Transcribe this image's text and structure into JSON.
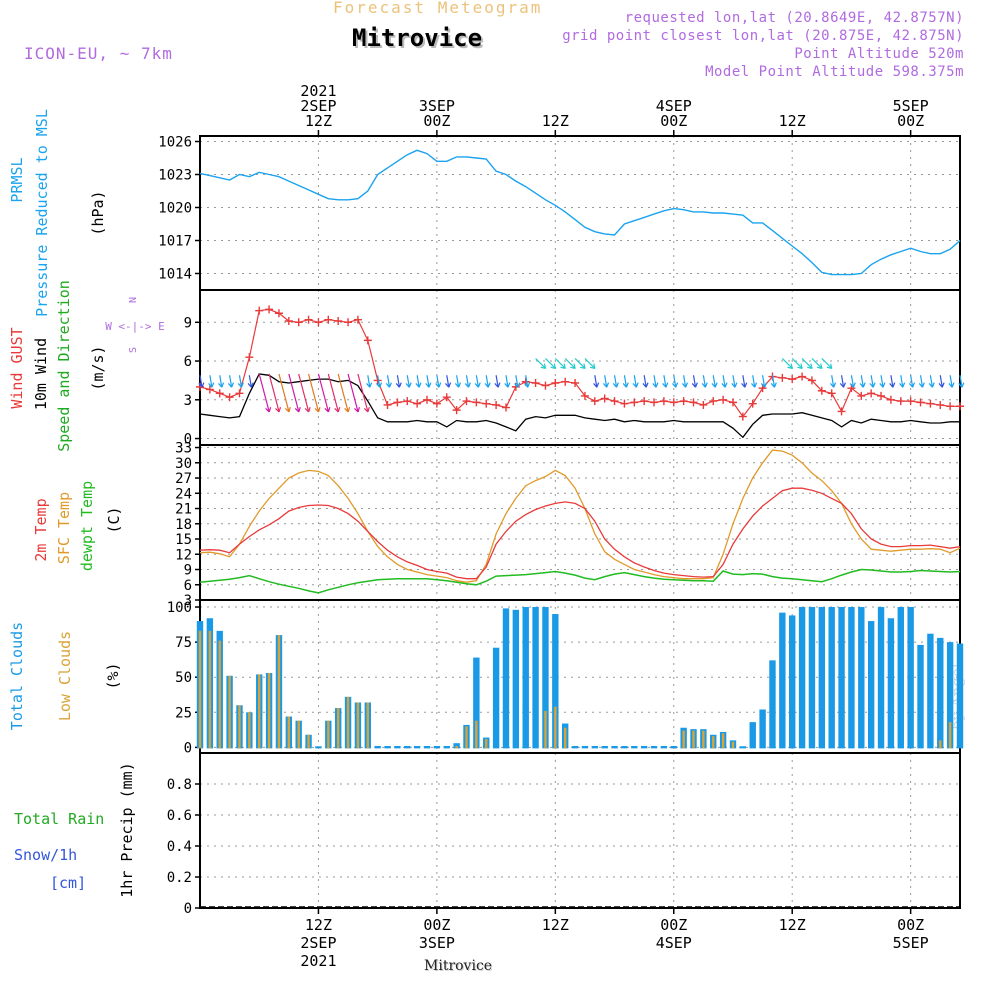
{
  "header": {
    "subtitle": "Forecast Meteogram",
    "title": "Mitrovice",
    "model": "ICON-EU, ~ 7km",
    "requested": "requested lon,lat (20.8649E, 42.8757N)",
    "grid": "grid point closest lon,lat (20.875E, 42.875N)",
    "point_alt": "Point Altitude 520m",
    "model_alt": "Model Point Altitude 598.375m",
    "watermark": "by Angel",
    "footer": "Mitrovice"
  },
  "colors": {
    "pressure": "#1aa3ee",
    "gust": "#e83a3a",
    "wind": "#000000",
    "wind_label": "#1faa1f",
    "temp": "#e83a3a",
    "sfc": "#e09a2a",
    "dewpt": "#22bb22",
    "total_cloud": "#1a9ae6",
    "low_cloud": "#d9a336",
    "rain": "#22aa22",
    "snow": "#3355dd",
    "header": "#b06be0"
  },
  "time_axis": {
    "top_labels": [
      {
        "t": 12,
        "lines": [
          "2021",
          "2SEP",
          "12Z"
        ]
      },
      {
        "t": 24,
        "lines": [
          "3SEP",
          "00Z"
        ]
      },
      {
        "t": 36,
        "lines": [
          "12Z"
        ]
      },
      {
        "t": 48,
        "lines": [
          "4SEP",
          "00Z"
        ]
      },
      {
        "t": 60,
        "lines": [
          "12Z"
        ]
      },
      {
        "t": 72,
        "lines": [
          "5SEP",
          "00Z"
        ]
      }
    ],
    "bottom_labels": [
      {
        "t": 12,
        "lines": [
          "12Z",
          "2SEP",
          "2021"
        ]
      },
      {
        "t": 24,
        "lines": [
          "00Z",
          "3SEP"
        ]
      },
      {
        "t": 36,
        "lines": [
          "12Z"
        ]
      },
      {
        "t": 48,
        "lines": [
          "00Z",
          "4SEP"
        ]
      },
      {
        "t": 60,
        "lines": [
          "12Z"
        ]
      },
      {
        "t": 72,
        "lines": [
          "00Z",
          "5SEP"
        ]
      }
    ],
    "range_hours": [
      0,
      77
    ]
  },
  "chart_data": [
    {
      "type": "line",
      "title": "PRMSL Pressure Reduced to MSL",
      "ylabel": "(hPa)",
      "label_lines": [
        "PRMSL",
        "Pressure Reduced to MSL"
      ],
      "ylim": [
        1012.5,
        1026.5
      ],
      "yticks": [
        1014,
        1017,
        1020,
        1023,
        1026
      ],
      "series": [
        {
          "name": "PRMSL",
          "x": [
            0,
            1,
            2,
            3,
            4,
            5,
            6,
            7,
            8,
            9,
            10,
            11,
            12,
            13,
            14,
            15,
            16,
            17,
            18,
            19,
            20,
            21,
            22,
            23,
            24,
            25,
            26,
            27,
            28,
            29,
            30,
            31,
            32,
            33,
            34,
            35,
            36,
            37,
            38,
            39,
            40,
            41,
            42,
            43,
            44,
            45,
            46,
            47,
            48,
            49,
            50,
            51,
            52,
            53,
            54,
            55,
            56,
            57,
            58,
            59,
            60,
            61,
            62,
            63,
            64,
            65,
            66,
            67,
            68,
            69,
            70,
            71,
            72,
            73,
            74,
            75,
            76,
            77
          ],
          "values": [
            1023.1,
            1022.9,
            1022.7,
            1022.5,
            1023.0,
            1022.8,
            1023.2,
            1023.0,
            1022.8,
            1022.4,
            1022.0,
            1021.6,
            1021.2,
            1020.8,
            1020.7,
            1020.7,
            1020.8,
            1021.5,
            1023.0,
            1023.6,
            1024.2,
            1024.8,
            1025.2,
            1024.9,
            1024.2,
            1024.2,
            1024.6,
            1024.6,
            1024.5,
            1024.4,
            1023.3,
            1023.0,
            1022.4,
            1021.9,
            1021.3,
            1020.7,
            1020.2,
            1019.6,
            1018.9,
            1018.2,
            1017.8,
            1017.6,
            1017.5,
            1018.5,
            1018.8,
            1019.1,
            1019.4,
            1019.7,
            1019.9,
            1019.8,
            1019.6,
            1019.6,
            1019.5,
            1019.5,
            1019.4,
            1019.3,
            1018.6,
            1018.6,
            1017.9,
            1017.2,
            1016.5,
            1015.8,
            1015.0,
            1014.1,
            1013.9,
            1013.9,
            1013.9,
            1014.0,
            1014.8,
            1015.3,
            1015.7,
            1016.0,
            1016.3,
            1016.0,
            1015.8,
            1015.8,
            1016.2,
            1017.0
          ]
        }
      ]
    },
    {
      "type": "line",
      "title": "Wind GUST / 10m Wind Speed and Direction",
      "ylabel": "(m/s)",
      "label_lines": [
        "Wind GUST",
        "10m Wind",
        "Speed and Direction"
      ],
      "compass": [
        "N",
        "W <-|-> E",
        "S"
      ],
      "ylim": [
        -0.5,
        11.5
      ],
      "yticks": [
        0,
        3,
        6,
        9
      ],
      "series": [
        {
          "name": "Wind GUST",
          "values": [
            4.0,
            3.8,
            3.5,
            3.2,
            3.5,
            6.3,
            9.9,
            10.0,
            9.7,
            9.1,
            9.0,
            9.2,
            9.0,
            9.2,
            9.1,
            9.0,
            9.2,
            7.6,
            4.5,
            2.6,
            2.8,
            2.9,
            2.7,
            3.0,
            2.7,
            3.2,
            2.2,
            2.9,
            2.8,
            2.7,
            2.6,
            2.4,
            4.0,
            4.4,
            4.3,
            4.1,
            4.3,
            4.4,
            4.3,
            3.3,
            2.9,
            3.1,
            2.9,
            2.7,
            2.8,
            2.9,
            2.8,
            2.9,
            2.8,
            2.9,
            2.8,
            2.6,
            2.9,
            3.0,
            2.8,
            1.7,
            2.7,
            3.9,
            4.8,
            4.7,
            4.6,
            4.8,
            4.5,
            3.7,
            3.5,
            2.1,
            3.9,
            3.3,
            3.5,
            3.3,
            3.0,
            2.9,
            2.9,
            2.8,
            2.7,
            2.6,
            2.5,
            2.5
          ]
        },
        {
          "name": "10m Wind",
          "values": [
            1.9,
            1.8,
            1.7,
            1.6,
            1.7,
            3.5,
            5.0,
            4.9,
            4.4,
            4.3,
            4.4,
            4.5,
            4.6,
            4.6,
            4.4,
            4.5,
            4.1,
            2.9,
            1.6,
            1.3,
            1.3,
            1.3,
            1.4,
            1.3,
            1.3,
            0.9,
            1.4,
            1.3,
            1.3,
            1.4,
            1.2,
            0.9,
            0.6,
            1.5,
            1.7,
            1.6,
            1.8,
            1.8,
            1.8,
            1.6,
            1.5,
            1.4,
            1.5,
            1.3,
            1.4,
            1.3,
            1.3,
            1.3,
            1.4,
            1.3,
            1.3,
            1.3,
            1.3,
            1.3,
            0.8,
            0.1,
            1.1,
            1.8,
            1.9,
            1.9,
            1.9,
            2.0,
            1.8,
            1.6,
            1.4,
            0.9,
            1.4,
            1.2,
            1.5,
            1.4,
            1.3,
            1.3,
            1.4,
            1.3,
            1.2,
            1.2,
            1.3,
            1.3
          ]
        }
      ]
    },
    {
      "type": "line",
      "title": "2m Temp / SFC Temp / dewpt Temp",
      "ylabel": "(C)",
      "label_lines": [
        "2m Temp",
        "SFC Temp",
        "dewpt Temp"
      ],
      "ylim": [
        3,
        33.5
      ],
      "yticks": [
        3,
        6,
        9,
        12,
        15,
        18,
        21,
        24,
        27,
        30,
        33
      ],
      "series": [
        {
          "name": "2m Temp",
          "values": [
            12.8,
            12.9,
            12.8,
            12.3,
            14.0,
            15.5,
            16.8,
            17.8,
            19.0,
            20.5,
            21.2,
            21.6,
            21.7,
            21.6,
            21.0,
            20.0,
            18.5,
            16.5,
            14.5,
            12.8,
            11.5,
            10.5,
            9.8,
            9.0,
            8.6,
            8.3,
            7.5,
            7.2,
            7.2,
            9.5,
            14.0,
            16.5,
            18.5,
            19.8,
            20.8,
            21.5,
            22.0,
            22.3,
            22.0,
            21.0,
            18.5,
            15.0,
            13.0,
            11.5,
            10.3,
            9.5,
            8.8,
            8.3,
            8.0,
            7.8,
            7.6,
            7.5,
            7.6,
            10.0,
            14.0,
            17.0,
            19.5,
            21.5,
            23.0,
            24.5,
            25.0,
            25.0,
            24.6,
            24.0,
            23.0,
            22.0,
            20.0,
            17.0,
            15.0,
            14.0,
            13.5,
            13.5,
            13.7,
            13.7,
            13.8,
            13.5,
            13.2,
            13.5
          ]
        },
        {
          "name": "SFC Temp",
          "values": [
            12.3,
            12.4,
            12.1,
            11.5,
            14.0,
            17.5,
            20.5,
            23.0,
            25.0,
            27.0,
            28.0,
            28.5,
            28.3,
            27.5,
            25.5,
            23.0,
            20.0,
            16.5,
            13.5,
            11.5,
            10.0,
            9.0,
            8.5,
            8.0,
            7.7,
            7.4,
            6.8,
            6.5,
            6.8,
            10.0,
            16.0,
            20.0,
            23.0,
            25.5,
            26.5,
            27.3,
            28.5,
            27.5,
            25.0,
            21.0,
            16.0,
            12.5,
            11.0,
            10.0,
            9.0,
            8.5,
            8.0,
            7.6,
            7.4,
            7.2,
            7.2,
            7.2,
            7.4,
            12.0,
            18.0,
            23.0,
            27.0,
            30.0,
            32.5,
            32.3,
            31.5,
            30.0,
            28.0,
            26.5,
            24.5,
            22.0,
            18.0,
            15.0,
            13.0,
            12.8,
            12.6,
            12.8,
            13.0,
            13.0,
            13.1,
            13.0,
            12.3,
            13.2
          ]
        },
        {
          "name": "dewpt Temp",
          "values": [
            6.5,
            6.7,
            6.9,
            7.1,
            7.4,
            7.8,
            7.2,
            6.6,
            6.1,
            5.7,
            5.3,
            4.8,
            4.4,
            5.0,
            5.5,
            6.0,
            6.4,
            6.7,
            7.0,
            7.1,
            7.2,
            7.2,
            7.2,
            7.2,
            7.0,
            6.8,
            6.5,
            6.2,
            6.0,
            6.7,
            7.7,
            7.8,
            7.9,
            8.0,
            8.2,
            8.4,
            8.6,
            8.3,
            7.9,
            7.3,
            7.0,
            7.6,
            8.1,
            8.4,
            8.0,
            7.6,
            7.3,
            7.1,
            7.0,
            6.9,
            6.8,
            6.8,
            6.7,
            8.7,
            8.1,
            8.0,
            8.2,
            8.1,
            7.6,
            7.3,
            7.2,
            7.0,
            6.8,
            6.6,
            7.2,
            7.9,
            8.5,
            9.0,
            8.9,
            8.7,
            8.5,
            8.5,
            8.6,
            8.8,
            8.7,
            8.6,
            8.5,
            8.6
          ]
        }
      ]
    },
    {
      "type": "bar",
      "title": "Total Clouds / Low Clouds",
      "ylabel": "(%)",
      "label_lines": [
        "Total Clouds",
        "Low Clouds"
      ],
      "ylim": [
        -4,
        105
      ],
      "yticks": [
        0,
        25,
        50,
        75,
        100
      ],
      "series": [
        {
          "name": "Total Clouds",
          "values": [
            90,
            92,
            83,
            51,
            30,
            25,
            52,
            53,
            80,
            22,
            19,
            9,
            0,
            19,
            28,
            36,
            32,
            32,
            1,
            1,
            1,
            1,
            1,
            1,
            1,
            1,
            3,
            16,
            64,
            7,
            71,
            99,
            98,
            100,
            100,
            100,
            95,
            17,
            1,
            1,
            1,
            1,
            1,
            1,
            1,
            1,
            1,
            1,
            1,
            14,
            13,
            13,
            9,
            11,
            5,
            0,
            18,
            27,
            62,
            96,
            94,
            100,
            100,
            100,
            100,
            100,
            100,
            100,
            90,
            100,
            92,
            100,
            100,
            73,
            81,
            78,
            75,
            74
          ]
        },
        {
          "name": "Low Clouds",
          "values": [
            83,
            83,
            76,
            51,
            30,
            25,
            52,
            53,
            80,
            22,
            19,
            9,
            0,
            19,
            28,
            36,
            32,
            32,
            0,
            0,
            0,
            0,
            0,
            0,
            0,
            0,
            1,
            15,
            19,
            6,
            0,
            0,
            0,
            0,
            0,
            26,
            29,
            14,
            0,
            0,
            0,
            0,
            0,
            0,
            0,
            0,
            0,
            0,
            0,
            12,
            12,
            12,
            8,
            10,
            4,
            0,
            0,
            0,
            0,
            0,
            0,
            0,
            0,
            0,
            0,
            0,
            0,
            0,
            0,
            0,
            0,
            0,
            0,
            0,
            0,
            5,
            18,
            0
          ]
        }
      ]
    },
    {
      "type": "bar",
      "title": "1hr Precip (mm)",
      "ylabel": "1hr Precip (mm)",
      "label_lines": [
        "Total  Rain",
        "Snow/1h",
        "[cm]"
      ],
      "ylim": [
        0,
        1.0
      ],
      "yticks": [
        0,
        0.2,
        0.4,
        0.6,
        0.8
      ],
      "ytick_labels": [
        "0",
        "0.2",
        "0.4",
        "0.6",
        "0.8"
      ],
      "series": [
        {
          "name": "Total Rain",
          "values": [
            0
          ]
        },
        {
          "name": "Snow/1h",
          "values": [
            0
          ]
        }
      ]
    }
  ]
}
